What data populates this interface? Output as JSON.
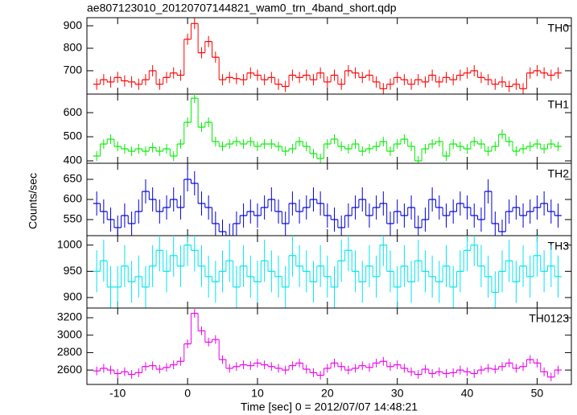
{
  "chart_data": {
    "type": "step",
    "title": "ae807123010_20120707144821_wam0_trn_4band_short.qdp",
    "xlabel": "Time [sec] 0 = 2012/07/07 14:48:21",
    "ylabel": "Counts/sec",
    "xlim": [
      -14.4,
      54.9
    ],
    "xticks": [
      -10,
      0,
      10,
      20,
      30,
      40,
      50
    ],
    "x": [
      -13,
      -12,
      -11,
      -10,
      -9,
      -8,
      -7,
      -6,
      -5,
      -4,
      -3,
      -2,
      -1,
      0,
      1,
      2,
      3,
      4,
      5,
      6,
      7,
      8,
      9,
      10,
      11,
      12,
      13,
      14,
      15,
      16,
      17,
      18,
      19,
      20,
      21,
      22,
      23,
      24,
      25,
      26,
      27,
      28,
      29,
      30,
      31,
      32,
      33,
      34,
      35,
      36,
      37,
      38,
      39,
      40,
      41,
      42,
      43,
      44,
      45,
      46,
      47,
      48,
      49,
      50,
      51,
      52,
      53
    ],
    "panels": [
      {
        "name": "TH0",
        "color": "#ff0000",
        "ylim": [
          596,
          936
        ],
        "yticks": [
          700,
          800,
          900
        ],
        "error": 25,
        "values": [
          640,
          660,
          650,
          670,
          655,
          650,
          640,
          660,
          700,
          640,
          670,
          690,
          680,
          840,
          910,
          780,
          830,
          760,
          660,
          670,
          665,
          660,
          690,
          680,
          660,
          670,
          640,
          630,
          680,
          670,
          680,
          660,
          690,
          650,
          680,
          640,
          700,
          690,
          670,
          680,
          650,
          620,
          640,
          670,
          660,
          640,
          660,
          650,
          680,
          650,
          670,
          660,
          680,
          690,
          700,
          670,
          660,
          640,
          650,
          630,
          640,
          620,
          690,
          700,
          690,
          680,
          690
        ]
      },
      {
        "name": "TH1",
        "color": "#00ee00",
        "ylim": [
          390,
          677
        ],
        "yticks": [
          400,
          500,
          600
        ],
        "error": 20,
        "values": [
          420,
          470,
          490,
          460,
          450,
          440,
          450,
          440,
          455,
          440,
          450,
          420,
          470,
          560,
          660,
          540,
          560,
          480,
          460,
          470,
          480,
          470,
          480,
          460,
          470,
          470,
          460,
          440,
          450,
          480,
          460,
          430,
          410,
          470,
          490,
          460,
          450,
          470,
          440,
          450,
          460,
          480,
          440,
          470,
          490,
          460,
          400,
          450,
          470,
          480,
          420,
          470,
          460,
          450,
          480,
          470,
          440,
          460,
          510,
          480,
          440,
          450,
          460,
          470,
          450,
          470,
          460
        ]
      },
      {
        "name": "TH2",
        "color": "#0000dd",
        "ylim": [
          510,
          690
        ],
        "yticks": [
          550,
          600,
          650
        ],
        "error": 30,
        "values": [
          590,
          570,
          550,
          530,
          560,
          540,
          570,
          620,
          600,
          570,
          580,
          600,
          580,
          650,
          640,
          590,
          580,
          540,
          520,
          510,
          540,
          560,
          570,
          560,
          580,
          600,
          570,
          540,
          590,
          570,
          580,
          600,
          590,
          560,
          550,
          530,
          560,
          580,
          600,
          560,
          580,
          590,
          540,
          570,
          560,
          580,
          530,
          550,
          600,
          580,
          560,
          570,
          590,
          580,
          560,
          550,
          620,
          540,
          520,
          570,
          580,
          560,
          570,
          580,
          590,
          570,
          560
        ]
      },
      {
        "name": "TH3",
        "color": "#00e5ee",
        "ylim": [
          880,
          1018
        ],
        "yticks": [
          900,
          950,
          1000
        ],
        "error": 40,
        "values": [
          950,
          970,
          920,
          920,
          960,
          930,
          940,
          920,
          960,
          990,
          950,
          980,
          960,
          1000,
          990,
          960,
          940,
          930,
          950,
          970,
          920,
          960,
          940,
          930,
          970,
          950,
          940,
          920,
          980,
          960,
          950,
          930,
          960,
          940,
          920,
          970,
          990,
          950,
          930,
          960,
          940,
          1000,
          950,
          920,
          960,
          930,
          970,
          950,
          940,
          930,
          960,
          920,
          950,
          990,
          1000,
          960,
          940,
          910,
          950,
          970,
          930,
          960,
          940,
          980,
          950,
          960,
          940
        ]
      },
      {
        "name": "TH0123",
        "color": "#ee00ee",
        "ylim": [
          2435,
          3311
        ],
        "yticks": [
          2600,
          2800,
          3000,
          3200
        ],
        "error": 50,
        "values": [
          2590,
          2620,
          2600,
          2560,
          2580,
          2550,
          2570,
          2640,
          2650,
          2610,
          2630,
          2660,
          2700,
          2900,
          3250,
          3050,
          2920,
          2950,
          2720,
          2620,
          2640,
          2660,
          2650,
          2680,
          2660,
          2640,
          2620,
          2600,
          2650,
          2680,
          2610,
          2570,
          2540,
          2620,
          2680,
          2640,
          2600,
          2620,
          2650,
          2630,
          2680,
          2700,
          2640,
          2660,
          2620,
          2580,
          2550,
          2610,
          2560,
          2580,
          2560,
          2570,
          2600,
          2580,
          2560,
          2600,
          2620,
          2610,
          2640,
          2680,
          2620,
          2640,
          2720,
          2680,
          2580,
          2520,
          2600
        ]
      }
    ]
  }
}
